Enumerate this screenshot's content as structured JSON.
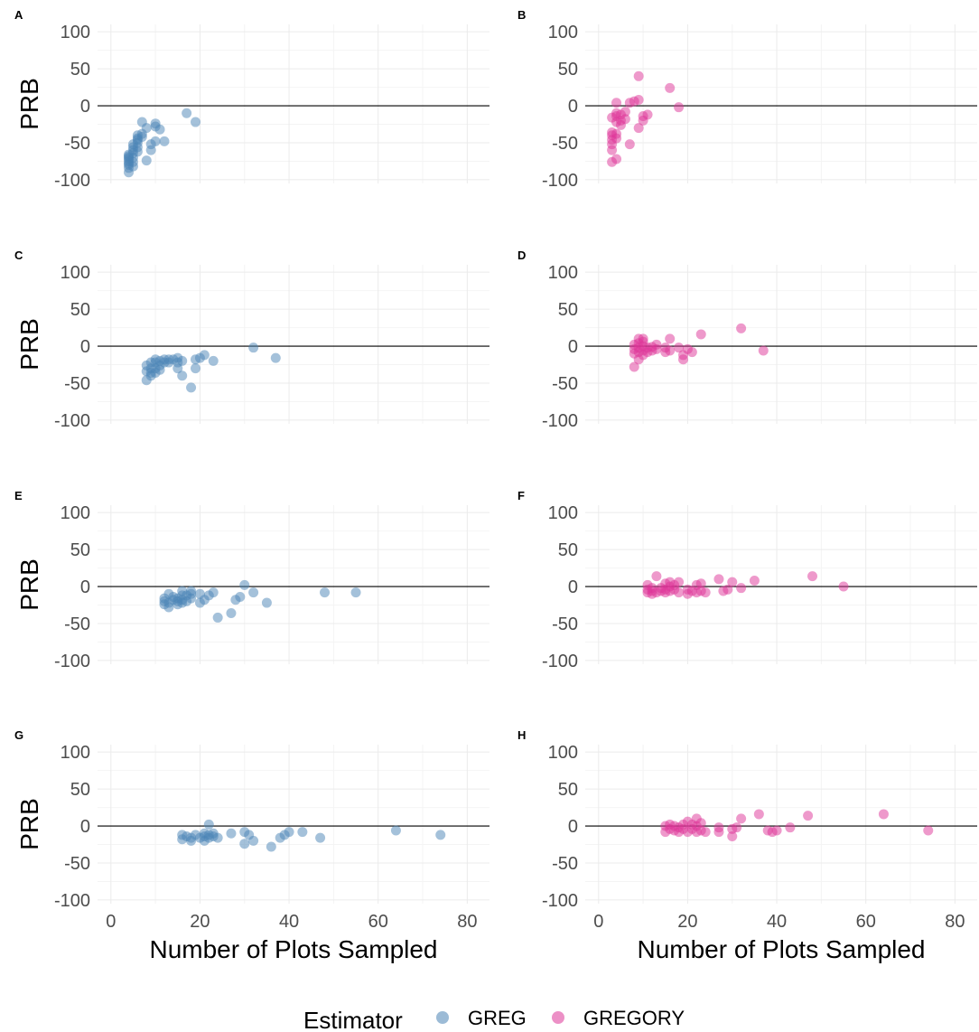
{
  "colors": {
    "greg": "#4a83b5",
    "gregory": "#dd3497",
    "zero_line": "#000000",
    "grid": "#ebebeb"
  },
  "legend": {
    "title": "Estimator",
    "items": [
      {
        "label": "GREG",
        "series": "greg"
      },
      {
        "label": "GREGORY",
        "series": "gregory"
      }
    ]
  },
  "shared_axes": {
    "xlabel": "Number of Plots Sampled",
    "ylabel": "PRB",
    "xlim": [
      -3,
      85
    ],
    "ylim": [
      -105,
      110
    ],
    "x_ticks": [
      "0",
      "20",
      "40",
      "60",
      "80"
    ],
    "y_ticks": [
      "100",
      "50",
      "0",
      "-50",
      "-100"
    ]
  },
  "chart_data": [
    {
      "panel": "A",
      "type": "scatter",
      "series": "greg",
      "show_ylabel": true,
      "show_xaxis": false,
      "points": [
        [
          4,
          -90
        ],
        [
          4,
          -84
        ],
        [
          4,
          -80
        ],
        [
          4,
          -78
        ],
        [
          4,
          -75
        ],
        [
          4,
          -72
        ],
        [
          4,
          -70
        ],
        [
          4,
          -68
        ],
        [
          4,
          -66
        ],
        [
          5,
          -82
        ],
        [
          5,
          -76
        ],
        [
          5,
          -70
        ],
        [
          5,
          -64
        ],
        [
          5,
          -60
        ],
        [
          5,
          -56
        ],
        [
          5,
          -52
        ],
        [
          6,
          -62
        ],
        [
          6,
          -56
        ],
        [
          6,
          -50
        ],
        [
          6,
          -46
        ],
        [
          6,
          -44
        ],
        [
          6,
          -40
        ],
        [
          7,
          -42
        ],
        [
          7,
          -38
        ],
        [
          7,
          -22
        ],
        [
          8,
          -30
        ],
        [
          8,
          -74
        ],
        [
          9,
          -60
        ],
        [
          9,
          -52
        ],
        [
          10,
          -48
        ],
        [
          10,
          -28
        ],
        [
          10,
          -24
        ],
        [
          11,
          -32
        ],
        [
          12,
          -48
        ],
        [
          17,
          -10
        ],
        [
          19,
          -22
        ]
      ]
    },
    {
      "panel": "B",
      "type": "scatter",
      "series": "gregory",
      "show_ylabel": false,
      "show_xaxis": false,
      "points": [
        [
          3,
          -76
        ],
        [
          3,
          -60
        ],
        [
          3,
          -52
        ],
        [
          3,
          -46
        ],
        [
          3,
          -40
        ],
        [
          3,
          -36
        ],
        [
          3,
          -16
        ],
        [
          4,
          -72
        ],
        [
          4,
          -44
        ],
        [
          4,
          -38
        ],
        [
          4,
          -22
        ],
        [
          4,
          -14
        ],
        [
          4,
          -10
        ],
        [
          4,
          4
        ],
        [
          5,
          -26
        ],
        [
          5,
          -20
        ],
        [
          5,
          -12
        ],
        [
          6,
          -18
        ],
        [
          6,
          -8
        ],
        [
          7,
          -52
        ],
        [
          7,
          4
        ],
        [
          8,
          6
        ],
        [
          9,
          -30
        ],
        [
          9,
          8
        ],
        [
          9,
          40
        ],
        [
          10,
          -20
        ],
        [
          10,
          -14
        ],
        [
          11,
          -12
        ],
        [
          16,
          24
        ],
        [
          18,
          -2
        ]
      ]
    },
    {
      "panel": "C",
      "type": "scatter",
      "series": "greg",
      "show_ylabel": true,
      "show_xaxis": false,
      "points": [
        [
          8,
          -46
        ],
        [
          8,
          -34
        ],
        [
          8,
          -26
        ],
        [
          9,
          -40
        ],
        [
          9,
          -36
        ],
        [
          9,
          -30
        ],
        [
          9,
          -22
        ],
        [
          10,
          -36
        ],
        [
          10,
          -30
        ],
        [
          10,
          -22
        ],
        [
          10,
          -18
        ],
        [
          11,
          -32
        ],
        [
          11,
          -26
        ],
        [
          11,
          -20
        ],
        [
          12,
          -22
        ],
        [
          12,
          -18
        ],
        [
          13,
          -22
        ],
        [
          13,
          -18
        ],
        [
          14,
          -18
        ],
        [
          15,
          -30
        ],
        [
          15,
          -22
        ],
        [
          15,
          -16
        ],
        [
          16,
          -40
        ],
        [
          16,
          -20
        ],
        [
          18,
          -56
        ],
        [
          19,
          -30
        ],
        [
          19,
          -18
        ],
        [
          20,
          -16
        ],
        [
          21,
          -12
        ],
        [
          23,
          -20
        ],
        [
          32,
          -2
        ],
        [
          37,
          -16
        ]
      ]
    },
    {
      "panel": "D",
      "type": "scatter",
      "series": "gregory",
      "show_ylabel": false,
      "show_xaxis": false,
      "points": [
        [
          8,
          -28
        ],
        [
          8,
          -10
        ],
        [
          8,
          -4
        ],
        [
          8,
          2
        ],
        [
          9,
          -18
        ],
        [
          9,
          -8
        ],
        [
          9,
          -2
        ],
        [
          9,
          4
        ],
        [
          9,
          10
        ],
        [
          10,
          -12
        ],
        [
          10,
          -6
        ],
        [
          10,
          0
        ],
        [
          10,
          6
        ],
        [
          10,
          10
        ],
        [
          11,
          -8
        ],
        [
          11,
          -2
        ],
        [
          12,
          -6
        ],
        [
          12,
          -1
        ],
        [
          13,
          -4
        ],
        [
          13,
          2
        ],
        [
          15,
          -8
        ],
        [
          15,
          -2
        ],
        [
          16,
          -6
        ],
        [
          16,
          10
        ],
        [
          18,
          -2
        ],
        [
          19,
          -18
        ],
        [
          19,
          -12
        ],
        [
          20,
          -4
        ],
        [
          21,
          -8
        ],
        [
          23,
          16
        ],
        [
          32,
          24
        ],
        [
          37,
          -6
        ]
      ]
    },
    {
      "panel": "E",
      "type": "scatter",
      "series": "greg",
      "show_ylabel": true,
      "show_xaxis": false,
      "points": [
        [
          12,
          -16
        ],
        [
          12,
          -20
        ],
        [
          12,
          -24
        ],
        [
          13,
          -28
        ],
        [
          13,
          -22
        ],
        [
          13,
          -10
        ],
        [
          14,
          -18
        ],
        [
          14,
          -14
        ],
        [
          15,
          -24
        ],
        [
          15,
          -20
        ],
        [
          15,
          -16
        ],
        [
          16,
          -22
        ],
        [
          16,
          -18
        ],
        [
          16,
          -12
        ],
        [
          16,
          -6
        ],
        [
          17,
          -20
        ],
        [
          17,
          -12
        ],
        [
          18,
          -16
        ],
        [
          18,
          -10
        ],
        [
          18,
          -6
        ],
        [
          20,
          -22
        ],
        [
          20,
          -10
        ],
        [
          21,
          -18
        ],
        [
          22,
          -12
        ],
        [
          23,
          -8
        ],
        [
          24,
          -42
        ],
        [
          27,
          -36
        ],
        [
          28,
          -18
        ],
        [
          29,
          -14
        ],
        [
          30,
          2
        ],
        [
          32,
          -8
        ],
        [
          35,
          -22
        ],
        [
          48,
          -8
        ],
        [
          55,
          -8
        ]
      ]
    },
    {
      "panel": "F",
      "type": "scatter",
      "series": "gregory",
      "show_ylabel": false,
      "show_xaxis": false,
      "points": [
        [
          11,
          -8
        ],
        [
          11,
          -4
        ],
        [
          11,
          2
        ],
        [
          12,
          -10
        ],
        [
          12,
          -6
        ],
        [
          12,
          -2
        ],
        [
          13,
          -8
        ],
        [
          13,
          14
        ],
        [
          14,
          -6
        ],
        [
          14,
          -2
        ],
        [
          15,
          -8
        ],
        [
          15,
          -4
        ],
        [
          15,
          4
        ],
        [
          16,
          -6
        ],
        [
          16,
          0
        ],
        [
          16,
          6
        ],
        [
          17,
          -4
        ],
        [
          17,
          2
        ],
        [
          18,
          -8
        ],
        [
          18,
          6
        ],
        [
          20,
          -10
        ],
        [
          20,
          -4
        ],
        [
          21,
          -6
        ],
        [
          22,
          -8
        ],
        [
          22,
          2
        ],
        [
          23,
          -6
        ],
        [
          23,
          4
        ],
        [
          24,
          -8
        ],
        [
          27,
          10
        ],
        [
          28,
          -6
        ],
        [
          29,
          -4
        ],
        [
          30,
          6
        ],
        [
          32,
          -2
        ],
        [
          35,
          8
        ],
        [
          48,
          14
        ],
        [
          55,
          0
        ]
      ]
    },
    {
      "panel": "G",
      "type": "scatter",
      "series": "greg",
      "show_ylabel": true,
      "show_xaxis": true,
      "points": [
        [
          16,
          -18
        ],
        [
          16,
          -12
        ],
        [
          17,
          -14
        ],
        [
          18,
          -20
        ],
        [
          18,
          -16
        ],
        [
          19,
          -12
        ],
        [
          20,
          -16
        ],
        [
          21,
          -20
        ],
        [
          21,
          -14
        ],
        [
          21,
          -10
        ],
        [
          22,
          -16
        ],
        [
          22,
          -12
        ],
        [
          22,
          2
        ],
        [
          23,
          -14
        ],
        [
          23,
          -10
        ],
        [
          24,
          -16
        ],
        [
          27,
          -10
        ],
        [
          30,
          -24
        ],
        [
          30,
          -8
        ],
        [
          31,
          -12
        ],
        [
          32,
          -20
        ],
        [
          36,
          -28
        ],
        [
          38,
          -16
        ],
        [
          39,
          -12
        ],
        [
          40,
          -8
        ],
        [
          43,
          -8
        ],
        [
          47,
          -16
        ],
        [
          64,
          -6
        ],
        [
          74,
          -12
        ]
      ]
    },
    {
      "panel": "H",
      "type": "scatter",
      "series": "gregory",
      "show_ylabel": false,
      "show_xaxis": true,
      "points": [
        [
          15,
          -8
        ],
        [
          15,
          0
        ],
        [
          16,
          -4
        ],
        [
          16,
          2
        ],
        [
          17,
          -6
        ],
        [
          17,
          0
        ],
        [
          18,
          -8
        ],
        [
          18,
          -2
        ],
        [
          19,
          -4
        ],
        [
          19,
          2
        ],
        [
          20,
          -8
        ],
        [
          20,
          6
        ],
        [
          21,
          -4
        ],
        [
          21,
          2
        ],
        [
          22,
          -8
        ],
        [
          22,
          0
        ],
        [
          22,
          10
        ],
        [
          23,
          -6
        ],
        [
          23,
          4
        ],
        [
          24,
          -8
        ],
        [
          27,
          -2
        ],
        [
          27,
          -8
        ],
        [
          30,
          -14
        ],
        [
          30,
          -4
        ],
        [
          31,
          -2
        ],
        [
          32,
          10
        ],
        [
          36,
          16
        ],
        [
          38,
          -6
        ],
        [
          39,
          -8
        ],
        [
          40,
          -6
        ],
        [
          43,
          -2
        ],
        [
          47,
          14
        ],
        [
          64,
          16
        ],
        [
          74,
          -6
        ]
      ]
    }
  ]
}
